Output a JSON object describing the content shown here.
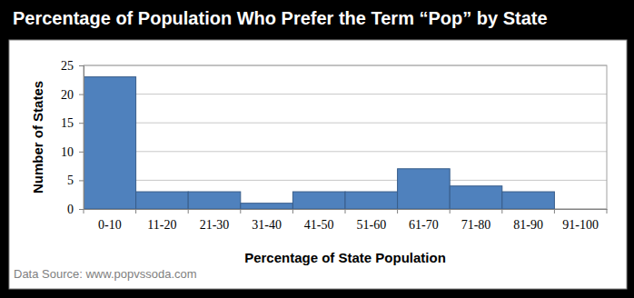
{
  "chart_data": {
    "type": "bar",
    "title": "Percentage of Population Who Prefer the Term “Pop” by State",
    "x_label": "Percentage of State Population",
    "y_label": "Number of States",
    "annotations": [
      "Data Source: www.popvssoda.com"
    ],
    "categories": [
      "0-10",
      "11-20",
      "21-30",
      "31-40",
      "41-50",
      "51-60",
      "61-70",
      "71-80",
      "81-90",
      "91-100"
    ],
    "values": [
      23,
      3,
      3,
      1,
      3,
      3,
      7,
      4,
      3,
      0
    ],
    "color": "#4f81bd",
    "ylim": [
      0,
      25
    ],
    "yticks": [
      0,
      5,
      10,
      15,
      20,
      25
    ],
    "grid": true
  }
}
